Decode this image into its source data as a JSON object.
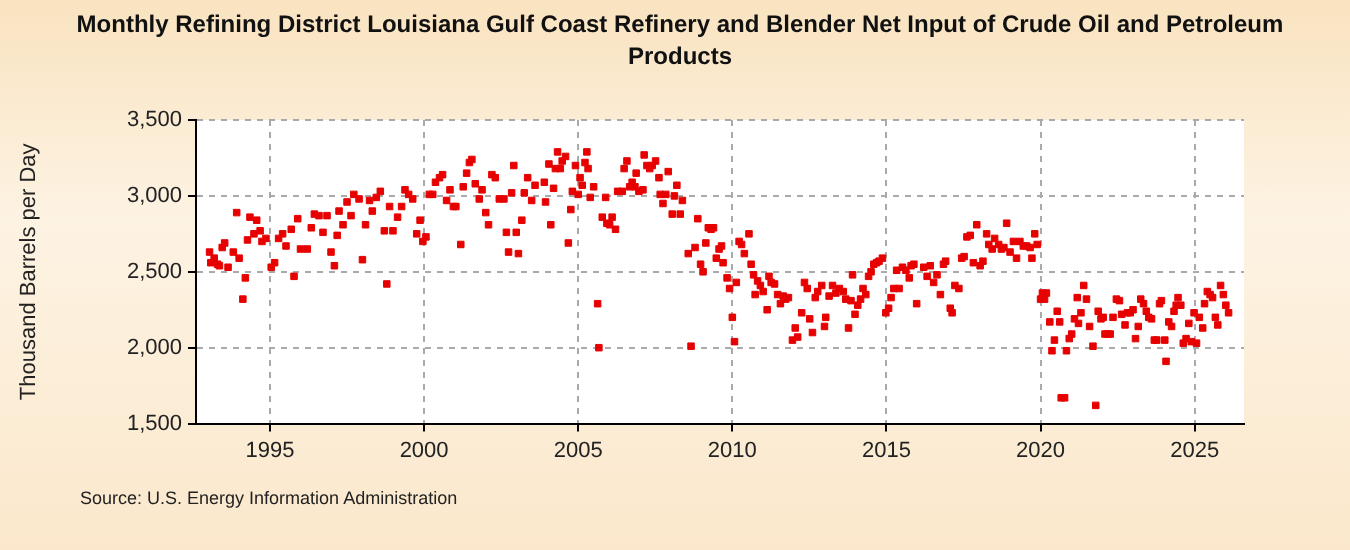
{
  "chart_data": {
    "type": "scatter",
    "title": "Monthly Refining District Louisiana Gulf Coast Refinery and Blender Net Input of Crude Oil and Petroleum Products",
    "ylabel": "Thousand Barrels per Day",
    "annotations": [
      "Source: U.S. Energy Information Administration"
    ],
    "marker": "square",
    "grid": true,
    "color": "#e60000",
    "xlim": [
      1992.6,
      2026.6
    ],
    "xticks": [
      1995,
      2000,
      2005,
      2010,
      2015,
      2020,
      2025
    ],
    "ylim": [
      1500,
      3500
    ],
    "yticks": [
      {
        "value": 1500,
        "label": "1,500"
      },
      {
        "value": 2000,
        "label": "2,000"
      },
      {
        "value": 2500,
        "label": "2,500"
      },
      {
        "value": 3000,
        "label": "3,000"
      },
      {
        "value": 3500,
        "label": "3,500"
      }
    ],
    "x": [
      1993.04,
      1993.08,
      1993.19,
      1993.3,
      1993.36,
      1993.45,
      1993.53,
      1993.64,
      1993.81,
      1993.92,
      1994.0,
      1994.12,
      1994.2,
      1994.27,
      1994.35,
      1994.48,
      1994.57,
      1994.68,
      1994.74,
      1994.87,
      1995.04,
      1995.15,
      1995.28,
      1995.41,
      1995.52,
      1995.69,
      1995.78,
      1995.9,
      1995.99,
      1996.21,
      1996.34,
      1996.44,
      1996.59,
      1996.72,
      1996.85,
      1996.98,
      1997.09,
      1997.18,
      1997.24,
      1997.37,
      1997.5,
      1997.63,
      1997.72,
      1997.89,
      1998.0,
      1998.1,
      1998.23,
      1998.32,
      1998.45,
      1998.58,
      1998.71,
      1998.79,
      1998.88,
      1998.99,
      1999.14,
      1999.27,
      1999.38,
      1999.5,
      1999.63,
      1999.76,
      1999.87,
      1999.96,
      2000.06,
      2000.17,
      2000.28,
      2000.37,
      2000.5,
      2000.6,
      2000.73,
      2000.84,
      2000.95,
      2001.03,
      2001.19,
      2001.27,
      2001.38,
      2001.47,
      2001.55,
      2001.66,
      2001.79,
      2001.88,
      2002.0,
      2002.09,
      2002.2,
      2002.31,
      2002.44,
      2002.59,
      2002.67,
      2002.74,
      2002.84,
      2002.91,
      2002.99,
      2003.06,
      2003.17,
      2003.25,
      2003.36,
      2003.49,
      2003.6,
      2003.9,
      2003.94,
      2004.05,
      2004.11,
      2004.2,
      2004.26,
      2004.33,
      2004.42,
      2004.48,
      2004.59,
      2004.68,
      2004.76,
      2004.81,
      2004.91,
      2005.0,
      2005.06,
      2005.13,
      2005.22,
      2005.28,
      2005.32,
      2005.39,
      2005.5,
      2005.63,
      2005.67,
      2005.78,
      2005.89,
      2005.93,
      2006.02,
      2006.1,
      2006.21,
      2006.28,
      2006.43,
      2006.49,
      2006.58,
      2006.67,
      2006.75,
      2006.84,
      2006.88,
      2006.97,
      2007.1,
      2007.14,
      2007.23,
      2007.32,
      2007.4,
      2007.51,
      2007.62,
      2007.66,
      2007.75,
      2007.84,
      2007.92,
      2008.05,
      2008.12,
      2008.2,
      2008.31,
      2008.38,
      2008.57,
      2008.66,
      2008.79,
      2008.88,
      2008.97,
      2009.05,
      2009.14,
      2009.22,
      2009.31,
      2009.39,
      2009.48,
      2009.57,
      2009.65,
      2009.7,
      2009.83,
      2009.91,
      2010.0,
      2010.07,
      2010.13,
      2010.22,
      2010.3,
      2010.39,
      2010.54,
      2010.61,
      2010.69,
      2010.74,
      2010.82,
      2010.91,
      2011.0,
      2011.13,
      2011.19,
      2011.26,
      2011.37,
      2011.47,
      2011.56,
      2011.65,
      2011.73,
      2011.82,
      2011.95,
      2012.04,
      2012.12,
      2012.25,
      2012.34,
      2012.43,
      2012.51,
      2012.6,
      2012.69,
      2012.77,
      2012.9,
      2012.99,
      2013.03,
      2013.14,
      2013.25,
      2013.36,
      2013.47,
      2013.6,
      2013.68,
      2013.77,
      2013.85,
      2013.9,
      2013.98,
      2014.07,
      2014.16,
      2014.24,
      2014.33,
      2014.42,
      2014.5,
      2014.59,
      2014.68,
      2014.76,
      2014.87,
      2014.98,
      2015.07,
      2015.15,
      2015.24,
      2015.33,
      2015.41,
      2015.52,
      2015.63,
      2015.74,
      2015.8,
      2015.89,
      2015.98,
      2016.21,
      2016.32,
      2016.42,
      2016.53,
      2016.64,
      2016.75,
      2016.85,
      2016.92,
      2017.07,
      2017.13,
      2017.22,
      2017.35,
      2017.44,
      2017.52,
      2017.61,
      2017.72,
      2017.82,
      2017.93,
      2018.04,
      2018.13,
      2018.25,
      2018.32,
      2018.43,
      2018.51,
      2018.64,
      2018.73,
      2018.81,
      2018.9,
      2019.01,
      2019.12,
      2019.22,
      2019.33,
      2019.44,
      2019.55,
      2019.66,
      2019.72,
      2019.81,
      2019.89,
      2020.0,
      2020.06,
      2020.13,
      2020.19,
      2020.3,
      2020.37,
      2020.45,
      2020.54,
      2020.62,
      2020.67,
      2020.78,
      2020.84,
      2020.93,
      2021.01,
      2021.1,
      2021.19,
      2021.23,
      2021.31,
      2021.4,
      2021.49,
      2021.59,
      2021.7,
      2021.79,
      2021.87,
      2021.96,
      2022.03,
      2022.09,
      2022.18,
      2022.26,
      2022.35,
      2022.46,
      2022.56,
      2022.63,
      2022.74,
      2022.82,
      2022.91,
      2023.0,
      2023.08,
      2023.17,
      2023.25,
      2023.34,
      2023.43,
      2023.51,
      2023.6,
      2023.69,
      2023.77,
      2023.86,
      2023.92,
      2024.03,
      2024.07,
      2024.16,
      2024.25,
      2024.33,
      2024.4,
      2024.46,
      2024.55,
      2024.63,
      2024.72,
      2024.81,
      2024.89,
      2024.98,
      2025.06,
      2025.15,
      2025.26,
      2025.32,
      2025.41,
      2025.5,
      2025.58,
      2025.67,
      2025.75,
      2025.84,
      2025.93,
      2026.01,
      2026.1
    ],
    "values": [
      2630,
      2560,
      2590,
      2550,
      2540,
      2660,
      2690,
      2530,
      2630,
      2890,
      2590,
      2320,
      2460,
      2710,
      2860,
      2750,
      2840,
      2770,
      2700,
      2720,
      2530,
      2560,
      2720,
      2750,
      2670,
      2780,
      2470,
      2850,
      2650,
      2650,
      2790,
      2880,
      2870,
      2760,
      2870,
      2630,
      2540,
      2740,
      2900,
      2810,
      2960,
      2870,
      3010,
      2980,
      2580,
      2810,
      2970,
      2900,
      2990,
      3030,
      2770,
      2420,
      2930,
      2770,
      2860,
      2930,
      3040,
      3010,
      2980,
      2750,
      2840,
      2700,
      2730,
      3010,
      3010,
      3090,
      3120,
      3140,
      2970,
      3040,
      2930,
      2930,
      2680,
      3060,
      3150,
      3220,
      3240,
      3080,
      2980,
      3040,
      2890,
      2810,
      3140,
      3120,
      2980,
      2980,
      2760,
      2630,
      3020,
      3200,
      2760,
      2620,
      2840,
      3020,
      3120,
      2970,
      3070,
      3090,
      2960,
      3210,
      2810,
      3050,
      3180,
      3290,
      3180,
      3230,
      3260,
      2690,
      2910,
      3030,
      3200,
      3010,
      3120,
      3070,
      3220,
      3290,
      3180,
      2990,
      3060,
      2290,
      2000,
      2860,
      2990,
      2820,
      2810,
      2860,
      2780,
      3030,
      3030,
      3180,
      3230,
      3060,
      3090,
      3060,
      3150,
      3030,
      3040,
      3270,
      3200,
      3180,
      3200,
      3230,
      3120,
      3010,
      2950,
      3010,
      3160,
      2880,
      3000,
      3070,
      2880,
      2970,
      2620,
      2010,
      2660,
      2850,
      2550,
      2500,
      2690,
      2790,
      2780,
      2790,
      2590,
      2650,
      2670,
      2560,
      2460,
      2390,
      2200,
      2040,
      2430,
      2700,
      2680,
      2620,
      2750,
      2550,
      2480,
      2350,
      2440,
      2410,
      2370,
      2250,
      2470,
      2430,
      2420,
      2350,
      2290,
      2340,
      2320,
      2330,
      2050,
      2130,
      2070,
      2230,
      2430,
      2390,
      2190,
      2100,
      2330,
      2370,
      2410,
      2140,
      2200,
      2340,
      2410,
      2360,
      2390,
      2370,
      2320,
      2130,
      2310,
      2480,
      2220,
      2280,
      2320,
      2390,
      2350,
      2470,
      2500,
      2550,
      2560,
      2570,
      2590,
      2230,
      2260,
      2330,
      2390,
      2510,
      2390,
      2530,
      2510,
      2460,
      2540,
      2550,
      2290,
      2530,
      2470,
      2540,
      2430,
      2480,
      2350,
      2550,
      2570,
      2260,
      2230,
      2410,
      2390,
      2590,
      2600,
      2730,
      2740,
      2560,
      2810,
      2540,
      2570,
      2750,
      2680,
      2650,
      2720,
      2680,
      2650,
      2660,
      2820,
      2630,
      2700,
      2590,
      2700,
      2670,
      2670,
      2660,
      2590,
      2750,
      2680,
      2320,
      2360,
      2320,
      2360,
      2170,
      1980,
      2050,
      2240,
      2170,
      1670,
      1670,
      1980,
      2060,
      2090,
      2190,
      2330,
      2160,
      2230,
      2410,
      2320,
      2140,
      2010,
      1620,
      2240,
      2190,
      2200,
      2090,
      2090,
      2090,
      2200,
      2320,
      2310,
      2220,
      2150,
      2230,
      2230,
      2250,
      2060,
      2140,
      2320,
      2290,
      2240,
      2200,
      2190,
      2050,
      2050,
      2290,
      2310,
      2050,
      1910,
      2170,
      2140,
      2240,
      2280,
      2330,
      2280,
      2030,
      2060,
      2160,
      2040,
      2230,
      2030,
      2200,
      2130,
      2290,
      2370,
      2350,
      2330,
      2200,
      2150,
      2410,
      2350,
      2280,
      2230
    ]
  }
}
